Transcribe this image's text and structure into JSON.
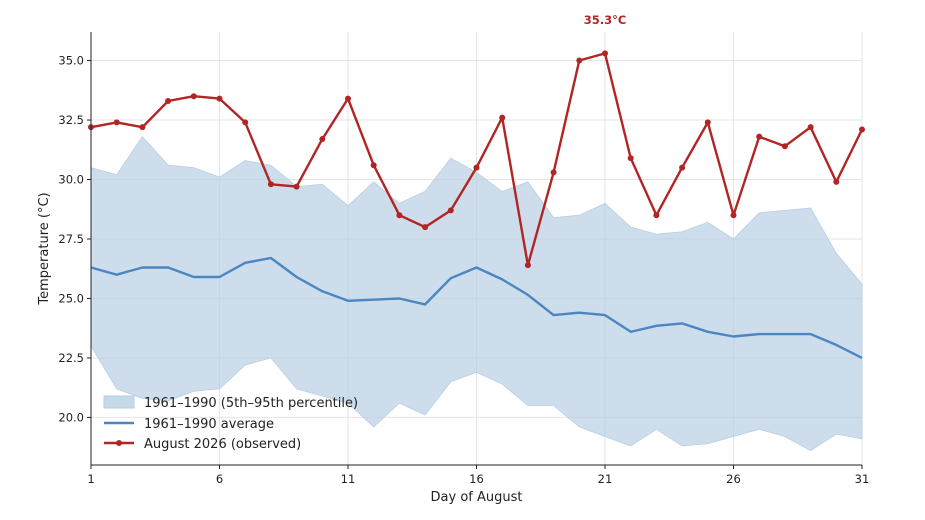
{
  "chart_data": {
    "type": "line",
    "xlabel": "Day of August",
    "ylabel": "Temperature (°C)",
    "xlim": [
      1,
      31
    ],
    "ylim": [
      18.0,
      36.2
    ],
    "xticks": [
      1,
      6,
      11,
      16,
      21,
      26,
      31
    ],
    "yticks": [
      20.0,
      22.5,
      25.0,
      27.5,
      30.0,
      32.5,
      35.0
    ],
    "grid": true,
    "legend_position": "lower-left",
    "x": [
      1,
      2,
      3,
      4,
      5,
      6,
      7,
      8,
      9,
      10,
      11,
      12,
      13,
      14,
      15,
      16,
      17,
      18,
      19,
      20,
      21,
      22,
      23,
      24,
      25,
      26,
      27,
      28,
      29,
      30,
      31
    ],
    "band": {
      "name": "1961–1990 (5th–95th percentile)",
      "color": "#b8cfe4",
      "lower": [
        23.0,
        21.2,
        20.8,
        20.7,
        21.1,
        21.2,
        22.2,
        22.5,
        21.2,
        20.9,
        20.6,
        19.6,
        20.6,
        20.1,
        21.5,
        21.9,
        21.4,
        20.5,
        20.5,
        19.6,
        19.2,
        18.8,
        19.5,
        18.8,
        18.9,
        19.2,
        19.5,
        19.2,
        18.6,
        19.3,
        19.1
      ],
      "upper": [
        30.5,
        30.2,
        31.8,
        30.6,
        30.5,
        30.1,
        30.8,
        30.6,
        29.7,
        29.8,
        28.9,
        29.9,
        29.0,
        29.5,
        30.9,
        30.3,
        29.5,
        29.9,
        28.4,
        28.5,
        29.0,
        28.0,
        27.7,
        27.8,
        28.2,
        27.5,
        28.6,
        28.7,
        28.8,
        26.9,
        25.6
      ]
    },
    "series": [
      {
        "name": "1961–1990 average",
        "color": "#4a86c0",
        "markers": false,
        "values": [
          26.3,
          26.0,
          26.3,
          26.3,
          25.9,
          25.9,
          26.5,
          26.7,
          25.9,
          25.3,
          24.9,
          24.95,
          25.0,
          24.75,
          25.85,
          26.3,
          25.8,
          25.15,
          24.3,
          24.4,
          24.3,
          23.6,
          23.85,
          23.95,
          23.6,
          23.4,
          23.5,
          23.5,
          23.5,
          23.05,
          22.5
        ]
      },
      {
        "name": "August 2026 (observed)",
        "color": "#b22525",
        "markers": true,
        "values": [
          32.2,
          32.4,
          32.2,
          33.3,
          33.5,
          33.4,
          32.4,
          29.8,
          29.7,
          31.7,
          33.4,
          30.6,
          28.5,
          28.0,
          28.7,
          30.5,
          32.6,
          26.4,
          30.3,
          35.0,
          35.3,
          30.9,
          28.5,
          30.5,
          32.4,
          28.5,
          31.8,
          31.4,
          32.2,
          29.9,
          32.1
        ]
      }
    ],
    "annotations": [
      {
        "x": 21,
        "y": 35.3,
        "text": "35.3°C",
        "color": "#b22525"
      }
    ]
  }
}
